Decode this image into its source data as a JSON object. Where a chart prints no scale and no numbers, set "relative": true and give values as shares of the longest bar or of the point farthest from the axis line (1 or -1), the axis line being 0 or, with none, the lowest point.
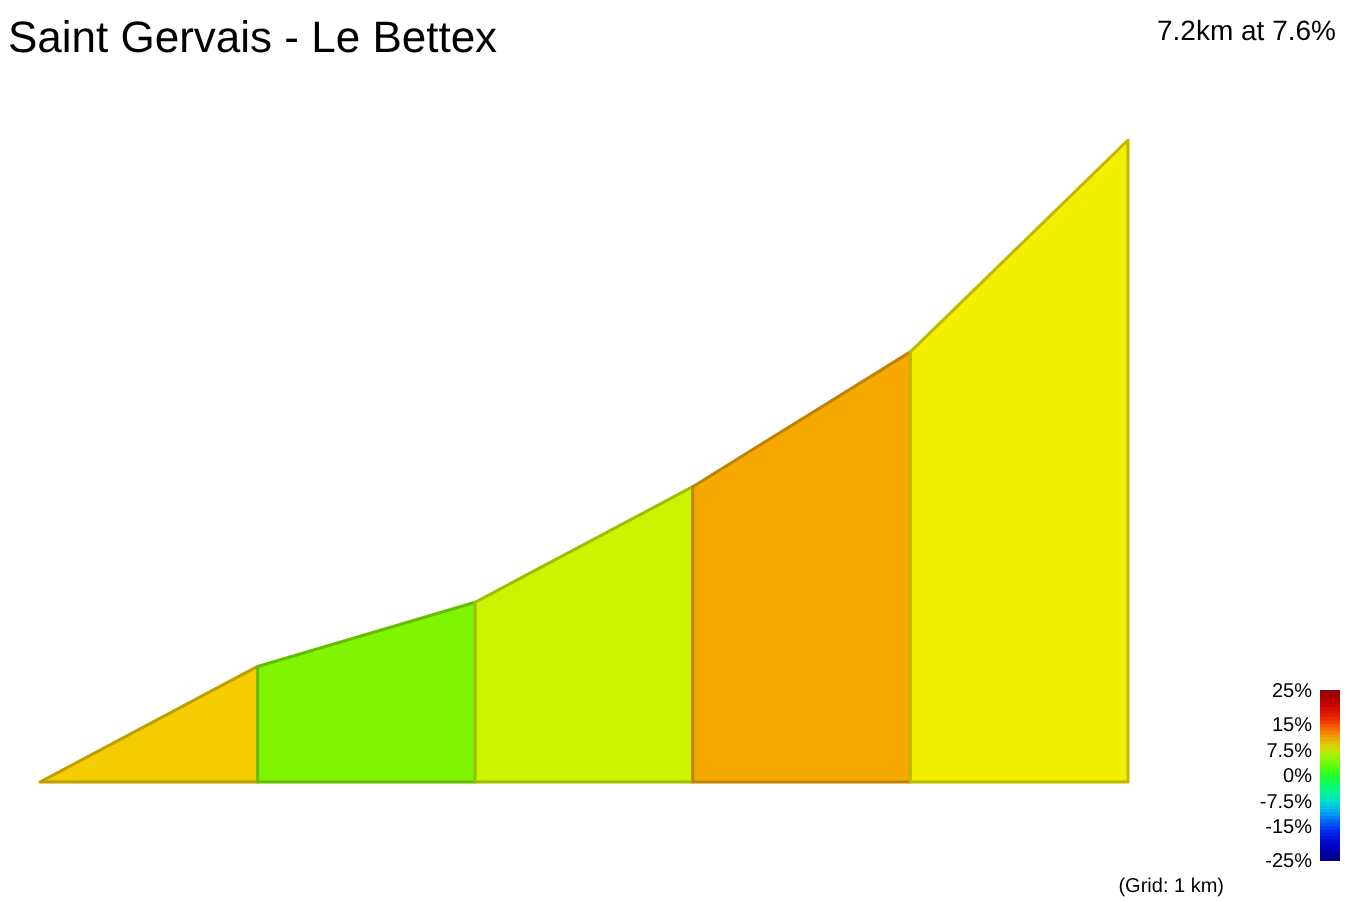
{
  "chart_data": {
    "type": "area",
    "title": "Saint Gervais - Le Bettex",
    "subtitle": "7.2km at 7.6%",
    "categories": [
      null,
      null,
      null,
      null,
      null,
      null
    ],
    "series": [
      {
        "color": "#f4cc00",
        "values": [
          0,
          0.18,
          null,
          null,
          null,
          null
        ]
      },
      {
        "color": "#80f400",
        "values": [
          null,
          0.18,
          0.28,
          null,
          null,
          null
        ]
      },
      {
        "color": "#ccf400",
        "values": [
          null,
          null,
          0.28,
          0.46,
          null,
          null
        ]
      },
      {
        "color": "#f4a800",
        "values": [
          null,
          null,
          null,
          0.46,
          0.67,
          null
        ]
      },
      {
        "color": "#f4ee00",
        "values": [
          null,
          null,
          null,
          null,
          0.67,
          1
        ]
      }
    ],
    "relative": true,
    "clim": [
      -25,
      25
    ],
    "cticks": [
      {
        "value": 25,
        "label": "25%"
      },
      {
        "value": 15,
        "label": "15%"
      },
      {
        "value": 7.5,
        "label": "7.5%"
      },
      {
        "value": 0,
        "label": "0%"
      },
      {
        "value": -7.5,
        "label": "-7.5%"
      },
      {
        "value": -15,
        "label": "-15%"
      },
      {
        "value": -25,
        "label": "-25%"
      }
    ],
    "annotations": [
      "(Grid: 1 km)"
    ]
  }
}
